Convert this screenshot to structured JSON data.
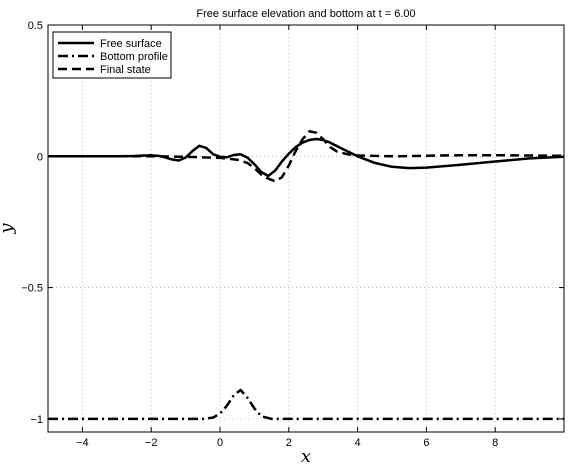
{
  "chart_data": {
    "type": "line",
    "title": "Free surface elevation and bottom at t = 6.00",
    "xlabel": "x",
    "ylabel": "y",
    "xlim": [
      -5,
      10
    ],
    "ylim": [
      -1.05,
      0.5
    ],
    "xticks": [
      -4,
      -2,
      0,
      2,
      4,
      6,
      8
    ],
    "xtick_labels": [
      "−4",
      "−2",
      "0",
      "2",
      "4",
      "6",
      "8"
    ],
    "yticks": [
      0.5,
      0,
      -0.5,
      -1
    ],
    "ytick_labels": [
      "0.5",
      "0",
      "−0.5",
      "−1"
    ],
    "grid": true,
    "legend_position": "top-left",
    "series": [
      {
        "name": "Free surface",
        "style": "solid",
        "color": "#000000",
        "x": [
          -5,
          -3,
          -2.5,
          -2,
          -1.7,
          -1.4,
          -1.2,
          -1.0,
          -0.8,
          -0.6,
          -0.4,
          -0.2,
          0,
          0.2,
          0.4,
          0.6,
          0.8,
          1.0,
          1.2,
          1.4,
          1.6,
          1.8,
          2.0,
          2.2,
          2.4,
          2.6,
          2.8,
          3.0,
          3.2,
          3.5,
          4.0,
          4.5,
          5.0,
          5.5,
          6.0,
          7.0,
          8.0,
          9.0,
          10.0
        ],
        "y": [
          0,
          0,
          0.001,
          0.004,
          0.0,
          -0.012,
          -0.016,
          -0.005,
          0.02,
          0.04,
          0.032,
          0.008,
          -0.002,
          -0.004,
          0.005,
          0.008,
          -0.005,
          -0.03,
          -0.06,
          -0.075,
          -0.055,
          -0.02,
          0.01,
          0.035,
          0.052,
          0.062,
          0.066,
          0.062,
          0.052,
          0.032,
          0.0,
          -0.025,
          -0.04,
          -0.045,
          -0.043,
          -0.032,
          -0.02,
          -0.008,
          -0.002
        ]
      },
      {
        "name": "Bottom profile",
        "style": "dashdot",
        "color": "#000000",
        "x": [
          -5,
          -1,
          -0.5,
          -0.2,
          0,
          0.2,
          0.4,
          0.6,
          0.8,
          1.0,
          1.2,
          1.5,
          2,
          10
        ],
        "y": [
          -1,
          -1,
          -1,
          -0.995,
          -0.98,
          -0.95,
          -0.91,
          -0.89,
          -0.92,
          -0.96,
          -0.99,
          -1,
          -1,
          -1
        ]
      },
      {
        "name": "Final state",
        "style": "dashed",
        "color": "#000000",
        "x": [
          -5,
          -2,
          -1,
          0,
          0.5,
          0.8,
          1.0,
          1.2,
          1.4,
          1.6,
          1.8,
          2.0,
          2.2,
          2.4,
          2.6,
          2.8,
          3.0,
          3.2,
          3.4,
          3.7,
          4.0,
          5,
          6,
          7,
          8,
          9,
          10
        ],
        "y": [
          0,
          0,
          -0.002,
          -0.006,
          -0.013,
          -0.025,
          -0.045,
          -0.07,
          -0.085,
          -0.095,
          -0.08,
          -0.035,
          0.02,
          0.065,
          0.095,
          0.09,
          0.065,
          0.035,
          0.018,
          0.008,
          0.003,
          0.0,
          0.002,
          0.004,
          0.004,
          0.003,
          0.002
        ]
      }
    ]
  }
}
